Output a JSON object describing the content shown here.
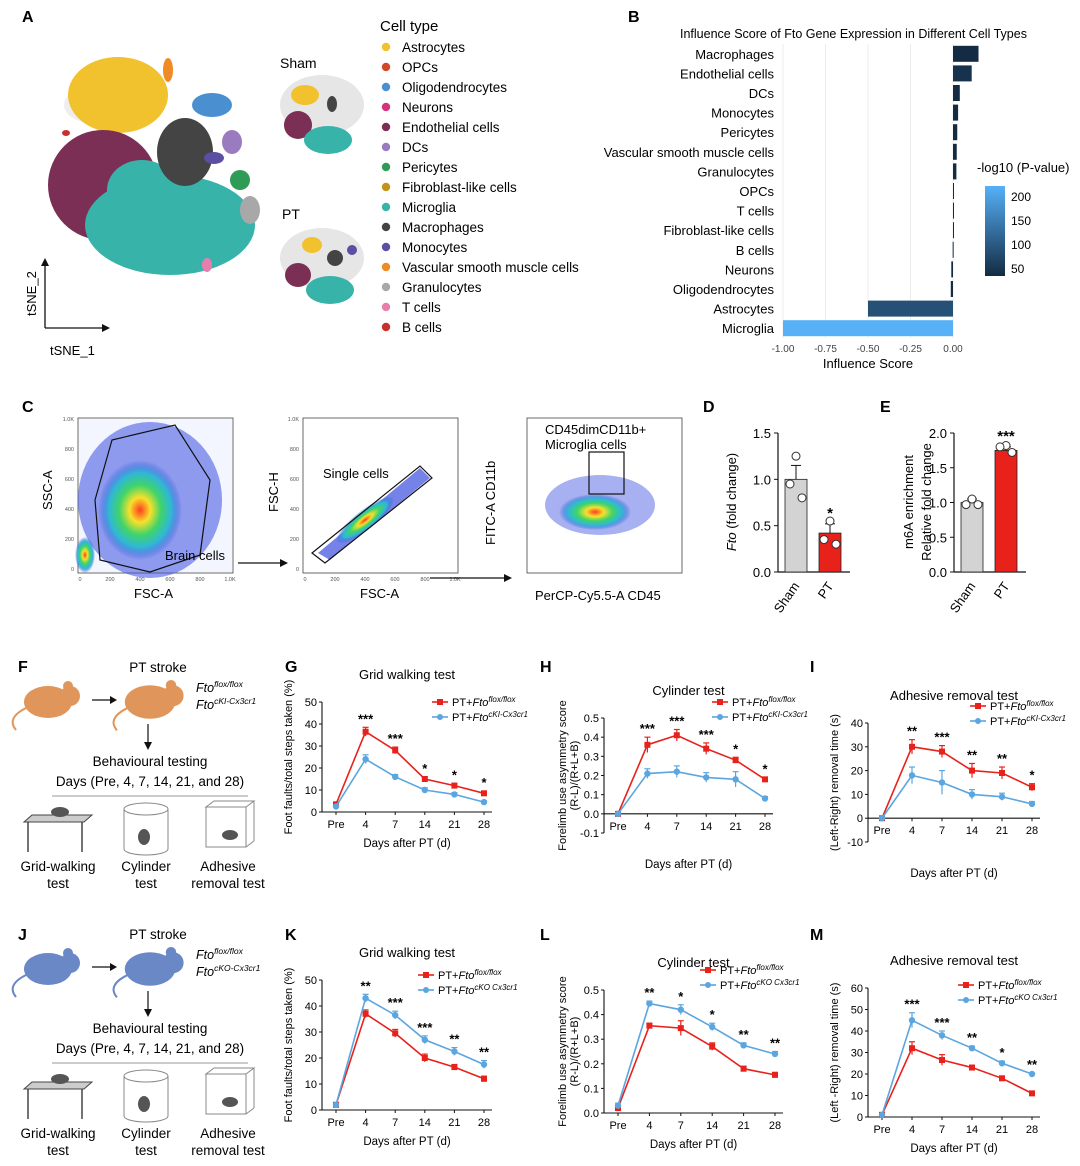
{
  "panel_letters": {
    "A": "A",
    "B": "B",
    "C": "C",
    "D": "D",
    "E": "E",
    "F": "F",
    "G": "G",
    "H": "H",
    "I": "I",
    "J": "J",
    "K": "K",
    "L": "L",
    "M": "M"
  },
  "panelA": {
    "axis_x": "tSNE_1",
    "axis_y": "tSNE_2",
    "sham_label": "Sham",
    "pt_label": "PT",
    "legend_title": "Cell type",
    "legend": [
      {
        "name": "Astrocytes",
        "color": "#F2C12E"
      },
      {
        "name": "OPCs",
        "color": "#D2492A"
      },
      {
        "name": "Oligodendrocytes",
        "color": "#4A8FD0"
      },
      {
        "name": "Neurons",
        "color": "#D6337F"
      },
      {
        "name": "Endothelial cells",
        "color": "#7B2F55"
      },
      {
        "name": "DCs",
        "color": "#9A7BBF"
      },
      {
        "name": "Pericytes",
        "color": "#2E9B56"
      },
      {
        "name": "Fibroblast-like cells",
        "color": "#C4921C"
      },
      {
        "name": "Microglia",
        "color": "#37B3AA"
      },
      {
        "name": "Macrophages",
        "color": "#444444"
      },
      {
        "name": "Monocytes",
        "color": "#5A4FA3"
      },
      {
        "name": "Vascular smooth muscle cells",
        "color": "#F08A24"
      },
      {
        "name": "Granulocytes",
        "color": "#A8A8A8"
      },
      {
        "name": "T cells",
        "color": "#E77FAE"
      },
      {
        "name": "B cells",
        "color": "#C9302C"
      }
    ]
  },
  "panelC": {
    "plot1": {
      "ylabel": "SSC-A",
      "xlabel": "FSC-A",
      "gate_label": "Brain cells",
      "yticks": [
        "1.0K",
        "800",
        "600",
        "400",
        "200",
        "0"
      ],
      "xticks": [
        "0",
        "200",
        "400",
        "600",
        "800",
        "1.0K"
      ]
    },
    "plot2": {
      "ylabel": "FSC-H",
      "xlabel": "FSC-A",
      "gate_label": "Single cells",
      "yticks": [
        "1.0K",
        "800",
        "600",
        "400",
        "200",
        "0"
      ],
      "xticks": [
        "0",
        "200",
        "400",
        "600",
        "800",
        "1.0K"
      ]
    },
    "plot3": {
      "ylabel": "FITC-A CD11b",
      "xlabel": "PerCP-Cy5.5-A CD45",
      "gate_label_1": "CD45dimCD11b+",
      "gate_label_2": "Microglia cells"
    }
  },
  "chart_data": [
    {
      "id": "B",
      "type": "bar",
      "orientation": "horizontal",
      "title": "Influence Score of Fto Gene Expression in Different Cell Types",
      "xlabel": "Influence Score",
      "legend_title": "-log10 (P-value)",
      "legend_ticks": [
        "200",
        "150",
        "100",
        "50"
      ],
      "xticks": [
        "-1.00",
        "-0.75",
        "-0.50",
        "-0.25",
        "0.00"
      ],
      "xlim": [
        -1.0,
        0.1
      ],
      "categories": [
        "Macrophages",
        "Endothelial cells",
        "DCs",
        "Monocytes",
        "Pericytes",
        "Vascular smooth muscle cells",
        "Granulocytes",
        "OPCs",
        "T cells",
        "Fibroblast-like cells",
        "B cells",
        "Neurons",
        "Oligodendrocytes",
        "Astrocytes",
        "Microglia"
      ],
      "values": [
        0.15,
        0.11,
        0.04,
        0.03,
        0.025,
        0.022,
        0.02,
        0.005,
        0.003,
        0.0,
        -0.002,
        -0.01,
        -0.013,
        -0.5,
        -1.0
      ],
      "neglogp": [
        30,
        40,
        28,
        25,
        25,
        25,
        25,
        25,
        25,
        25,
        25,
        25,
        25,
        80,
        210
      ]
    },
    {
      "id": "D",
      "type": "bar",
      "ylabel": "Fto (fold change)",
      "categories": [
        "Sham",
        "PT"
      ],
      "values": [
        1.0,
        0.42
      ],
      "sem": [
        0.15,
        0.1
      ],
      "points": [
        [
          1.25,
          0.95,
          0.8
        ],
        [
          0.55,
          0.35,
          0.3
        ]
      ],
      "sig": [
        "",
        "*"
      ],
      "ylim": [
        0,
        1.5
      ],
      "yticks": [
        "0.0",
        "0.5",
        "1.0",
        "1.5"
      ]
    },
    {
      "id": "E",
      "type": "bar",
      "ylabel": "m6A enrichment Relative fold change",
      "categories": [
        "Sham",
        "PT"
      ],
      "values": [
        1.0,
        1.75
      ],
      "sem": [
        0.05,
        0.05
      ],
      "points": [
        [
          1.05,
          0.97,
          0.97
        ],
        [
          1.82,
          1.8,
          1.72
        ]
      ],
      "sig": [
        "",
        "***"
      ],
      "ylim": [
        0,
        2.0
      ],
      "yticks": [
        "0.0",
        "0.5",
        "1.0",
        "1.5",
        "2.0"
      ]
    },
    {
      "id": "G",
      "type": "line",
      "title": "Grid walking test",
      "ylabel": "Foot faults/total steps taken (%)",
      "xlabel": "Days after PT (d)",
      "x": [
        "Pre",
        "4",
        "7",
        "14",
        "21",
        "28"
      ],
      "ylim": [
        0,
        50
      ],
      "yticks": [
        "0",
        "10",
        "20",
        "30",
        "40",
        "50"
      ],
      "series": [
        {
          "name": "PT+Fto flox/flox",
          "values": [
            3.5,
            36.5,
            28,
            15,
            12,
            8.5
          ],
          "err": [
            0.5,
            2,
            1.5,
            1,
            1,
            1
          ]
        },
        {
          "name": "PT+Fto cKI-Cx3cr1",
          "values": [
            2.5,
            24,
            16,
            10,
            8,
            4.5
          ],
          "err": [
            0.5,
            2,
            1,
            1,
            0.8,
            0.6
          ]
        }
      ],
      "sig": [
        "",
        "***",
        "***",
        "*",
        "*",
        "*"
      ]
    },
    {
      "id": "H",
      "type": "line",
      "title": "Cylinder test",
      "ylabel": "Forelimb use asymmetry score (R-L)/(R+L+B)",
      "xlabel": "Days after PT (d)",
      "x": [
        "Pre",
        "4",
        "7",
        "14",
        "21",
        "28"
      ],
      "ylim": [
        -0.1,
        0.5
      ],
      "yticks": [
        "-0.1",
        "0.0",
        "0.1",
        "0.2",
        "0.3",
        "0.4",
        "0.5"
      ],
      "series": [
        {
          "name": "PT+Fto flox/flox",
          "values": [
            0.0,
            0.36,
            0.41,
            0.34,
            0.28,
            0.18
          ],
          "err": [
            0.01,
            0.04,
            0.03,
            0.03,
            0.015,
            0.01
          ]
        },
        {
          "name": "PT+Fto cKI-Cx3cr1",
          "values": [
            0.0,
            0.21,
            0.22,
            0.19,
            0.18,
            0.08
          ],
          "err": [
            0.01,
            0.025,
            0.03,
            0.025,
            0.04,
            0.01
          ]
        }
      ],
      "sig": [
        "",
        "***",
        "***",
        "***",
        "*",
        "*"
      ]
    },
    {
      "id": "I",
      "type": "line",
      "title": "Adhesive removal test",
      "ylabel": "(Left-Right) removal time (s)",
      "xlabel": "Days after PT (d)",
      "x": [
        "Pre",
        "4",
        "7",
        "14",
        "21",
        "28"
      ],
      "ylim": [
        -10,
        40
      ],
      "yticks": [
        "-10",
        "0",
        "10",
        "20",
        "30",
        "40"
      ],
      "series": [
        {
          "name": "PT+Fto flox/flox",
          "values": [
            0,
            30,
            28,
            20,
            19,
            13
          ],
          "err": [
            1,
            3,
            2.5,
            3,
            2.5,
            1.5
          ]
        },
        {
          "name": "PT+Fto cKI-Cx3cr1",
          "values": [
            0,
            18,
            15,
            10,
            9,
            6
          ],
          "err": [
            1,
            3.5,
            5,
            2,
            1.5,
            1
          ]
        }
      ],
      "sig": [
        "",
        "**",
        "***",
        "**",
        "**",
        "*"
      ]
    },
    {
      "id": "K",
      "type": "line",
      "title": "Grid walking test",
      "ylabel": "Foot faults/total steps taken (%)",
      "xlabel": "Days after PT (d)",
      "x": [
        "Pre",
        "4",
        "7",
        "14",
        "21",
        "28"
      ],
      "ylim": [
        0,
        50
      ],
      "yticks": [
        "0",
        "10",
        "20",
        "30",
        "40",
        "50"
      ],
      "series": [
        {
          "name": "PT+Fto flox/flox",
          "values": [
            2,
            37,
            29.5,
            20,
            16.5,
            12
          ],
          "err": [
            0.3,
            1.5,
            1.5,
            1.5,
            1,
            1
          ]
        },
        {
          "name": "PT+Fto cKO Cx3cr1",
          "values": [
            2,
            43,
            36.5,
            27,
            22.5,
            17.5
          ],
          "err": [
            0.3,
            1.5,
            1.5,
            1.5,
            1.5,
            1.5
          ]
        }
      ],
      "sig": [
        "",
        "**",
        "***",
        "***",
        "**",
        "**"
      ]
    },
    {
      "id": "L",
      "type": "line",
      "title": "Cylinder test",
      "ylabel": "Forelimb use asymmetry score (R-L)/(R+L+B)",
      "xlabel": "Days after PT (d)",
      "x": [
        "Pre",
        "4",
        "7",
        "14",
        "21",
        "28"
      ],
      "ylim": [
        0,
        0.5
      ],
      "yticks": [
        "0.0",
        "0.1",
        "0.2",
        "0.3",
        "0.4",
        "0.5"
      ],
      "series": [
        {
          "name": "PT+Fto flox/flox",
          "values": [
            0.02,
            0.355,
            0.345,
            0.27,
            0.18,
            0.155
          ],
          "err": [
            0.01,
            0.01,
            0.03,
            0.015,
            0.01,
            0.01
          ]
        },
        {
          "name": "PT+Fto cKO Cx3cr1",
          "values": [
            0.03,
            0.445,
            0.42,
            0.35,
            0.275,
            0.24
          ],
          "err": [
            0.01,
            0.01,
            0.02,
            0.015,
            0.01,
            0.01
          ]
        }
      ],
      "sig": [
        "",
        "**",
        "*",
        "*",
        "**",
        "**"
      ]
    },
    {
      "id": "M",
      "type": "line",
      "title": "Adhesive removal test",
      "ylabel": "(Left -Right) removal time (s)",
      "xlabel": "Days after PT (d)",
      "x": [
        "Pre",
        "4",
        "7",
        "14",
        "21",
        "28"
      ],
      "ylim": [
        0,
        60
      ],
      "yticks": [
        "0",
        "10",
        "20",
        "30",
        "40",
        "50",
        "60"
      ],
      "series": [
        {
          "name": "PT+Fto flox/flox",
          "values": [
            1,
            32,
            26.5,
            23,
            18,
            11
          ],
          "err": [
            0.5,
            3,
            2.5,
            1,
            1,
            0.5
          ]
        },
        {
          "name": "PT+Fto cKO Cx3cr1",
          "values": [
            1,
            45,
            38,
            32,
            25,
            20
          ],
          "err": [
            0.5,
            3.5,
            2,
            1,
            1,
            0.5
          ]
        }
      ],
      "sig": [
        "",
        "***",
        "***",
        "**",
        "*",
        "**"
      ]
    }
  ],
  "panelF": {
    "stroke_label": "PT stroke",
    "genotype_1": "Fto",
    "genotype_1_sup": "flox/flox",
    "genotype_2": "Fto",
    "genotype_2_sup": "cKI-Cx3cr1",
    "testing_label": "Behavioural testing",
    "days_label": "Days (Pre, 4, 7, 14, 21, and 28)",
    "test1": "Grid-walking",
    "test1b": "test",
    "test2": "Cylinder",
    "test2b": "test",
    "test3": "Adhesive",
    "test3b": "removal test"
  },
  "panelJ": {
    "stroke_label": "PT stroke",
    "genotype_1": "Fto",
    "genotype_1_sup": "flox/flox",
    "genotype_2": "Fto",
    "genotype_2_sup": "cKO-Cx3cr1",
    "testing_label": "Behavioural testing",
    "days_label": "Days (Pre, 4, 7, 14, 21, and 28)",
    "test1": "Grid-walking",
    "test1b": "test",
    "test2": "Cylinder",
    "test2b": "test",
    "test3": "Adhesive",
    "test3b": "removal test"
  },
  "colors": {
    "red": "#E8221B",
    "blue": "#5BA6E0",
    "gray_bar": "#D3D3D3",
    "navy": "#1D3557",
    "light_blue": "#58ABE8"
  }
}
